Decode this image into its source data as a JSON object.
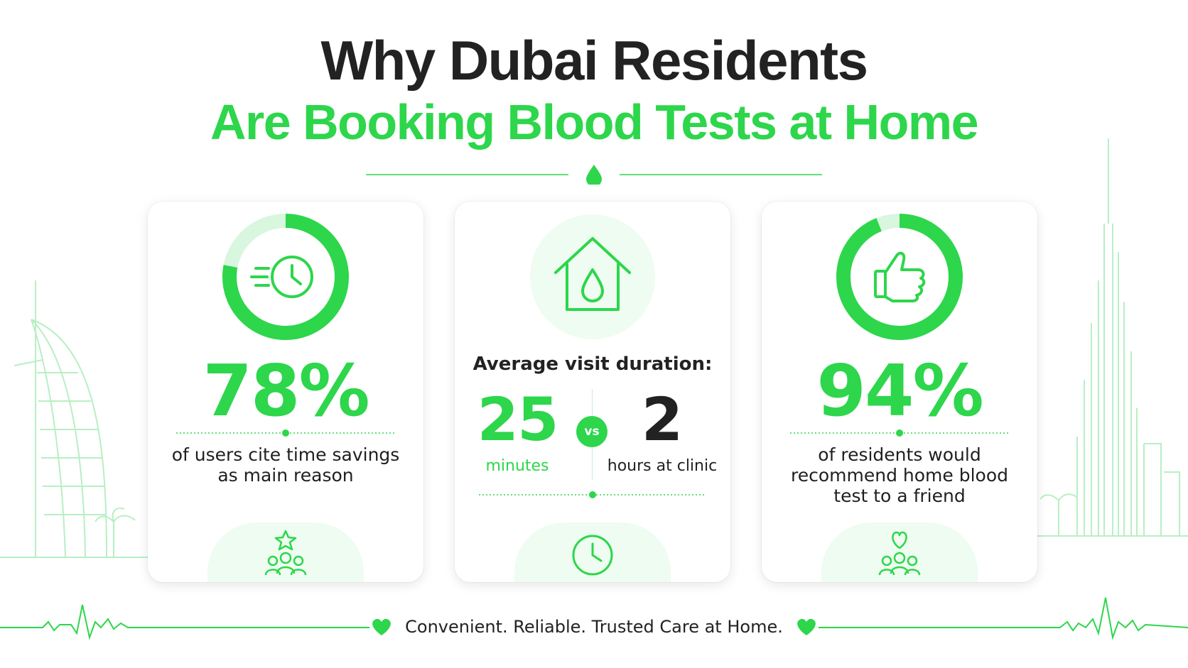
{
  "title": {
    "line1": "Why Dubai Residents",
    "line2": "Are Booking Blood Tests at Home"
  },
  "colors": {
    "accent": "#2dd64b",
    "accent_light": "#d9f6df",
    "text": "#222222"
  },
  "stats": [
    {
      "value": "78%",
      "progress_percent": 78,
      "icon": "fast-clock-icon",
      "caption": "of users cite time savings as main reason",
      "footer_icon": "star-people-icon"
    },
    {
      "icon": "house-blood-drop-icon",
      "label": "Average visit duration:",
      "home_value": "25",
      "home_unit": "minutes",
      "vs": "vs",
      "clinic_value": "2",
      "clinic_unit": "hours at clinic",
      "footer_icon": "clock-icon"
    },
    {
      "value": "94%",
      "progress_percent": 94,
      "icon": "thumbs-up-icon",
      "caption": "of residents would recommend home blood test to a friend",
      "footer_icon": "heart-people-icon"
    }
  ],
  "tagline": "Convenient. Reliable. Trusted Care at Home."
}
